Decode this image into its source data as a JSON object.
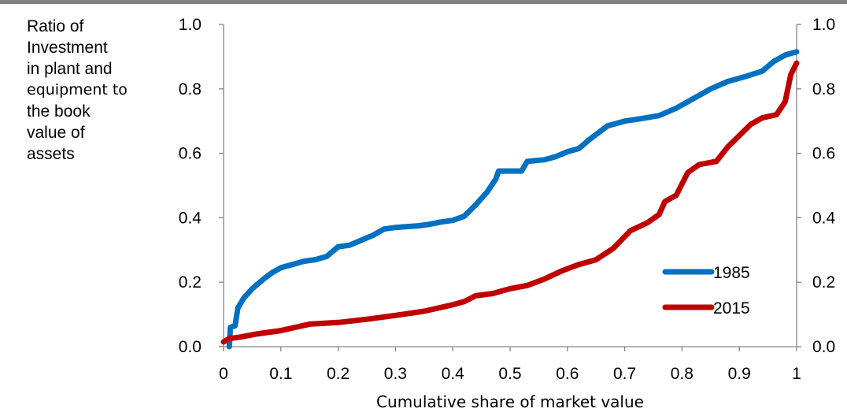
{
  "chart_data": {
    "type": "line",
    "ylabel_lines": [
      "Ratio of",
      "Investment",
      "in plant and",
      "equipment to",
      "the book",
      "value of",
      "assets"
    ],
    "xlabel": "Cumulative share of market value",
    "xlim": [
      0,
      1
    ],
    "ylim": [
      0,
      1
    ],
    "xticks": [
      0,
      0.1,
      0.2,
      0.3,
      0.4,
      0.5,
      0.6,
      0.7,
      0.8,
      0.9,
      1
    ],
    "xtick_labels": [
      "0",
      "0.1",
      "0.2",
      "0.3",
      "0.4",
      "0.5",
      "0.6",
      "0.7",
      "0.8",
      "0.9",
      "1"
    ],
    "yticks": [
      0,
      0.2,
      0.4,
      0.6,
      0.8,
      1.0
    ],
    "ytick_labels_left": [
      "0.0",
      "0.2",
      "0.4",
      "0.6",
      "0.8",
      "1.0"
    ],
    "ytick_labels_right": [
      "0.0",
      "0.2",
      "0.4",
      "0.6",
      "0.8",
      "1.0"
    ],
    "grid": false,
    "legend_position": "right-middle",
    "series": [
      {
        "name": "1985",
        "color": "#0070C0",
        "points": [
          [
            0.01,
            0.0
          ],
          [
            0.012,
            0.06
          ],
          [
            0.02,
            0.065
          ],
          [
            0.025,
            0.12
          ],
          [
            0.035,
            0.15
          ],
          [
            0.05,
            0.18
          ],
          [
            0.07,
            0.21
          ],
          [
            0.085,
            0.23
          ],
          [
            0.1,
            0.245
          ],
          [
            0.12,
            0.255
          ],
          [
            0.14,
            0.265
          ],
          [
            0.16,
            0.27
          ],
          [
            0.18,
            0.28
          ],
          [
            0.19,
            0.295
          ],
          [
            0.2,
            0.31
          ],
          [
            0.22,
            0.315
          ],
          [
            0.24,
            0.33
          ],
          [
            0.26,
            0.345
          ],
          [
            0.28,
            0.365
          ],
          [
            0.3,
            0.37
          ],
          [
            0.34,
            0.375
          ],
          [
            0.36,
            0.38
          ],
          [
            0.38,
            0.387
          ],
          [
            0.4,
            0.392
          ],
          [
            0.42,
            0.405
          ],
          [
            0.44,
            0.44
          ],
          [
            0.46,
            0.48
          ],
          [
            0.475,
            0.52
          ],
          [
            0.48,
            0.545
          ],
          [
            0.52,
            0.545
          ],
          [
            0.53,
            0.575
          ],
          [
            0.56,
            0.58
          ],
          [
            0.58,
            0.59
          ],
          [
            0.6,
            0.605
          ],
          [
            0.62,
            0.615
          ],
          [
            0.64,
            0.645
          ],
          [
            0.67,
            0.685
          ],
          [
            0.7,
            0.7
          ],
          [
            0.73,
            0.708
          ],
          [
            0.76,
            0.717
          ],
          [
            0.79,
            0.74
          ],
          [
            0.82,
            0.77
          ],
          [
            0.85,
            0.8
          ],
          [
            0.88,
            0.823
          ],
          [
            0.91,
            0.838
          ],
          [
            0.94,
            0.855
          ],
          [
            0.96,
            0.885
          ],
          [
            0.98,
            0.905
          ],
          [
            1.0,
            0.915
          ]
        ]
      },
      {
        "name": "2015",
        "color": "#C00000",
        "points": [
          [
            0.0,
            0.015
          ],
          [
            0.01,
            0.025
          ],
          [
            0.03,
            0.03
          ],
          [
            0.06,
            0.04
          ],
          [
            0.1,
            0.05
          ],
          [
            0.15,
            0.07
          ],
          [
            0.2,
            0.075
          ],
          [
            0.25,
            0.085
          ],
          [
            0.3,
            0.097
          ],
          [
            0.35,
            0.11
          ],
          [
            0.4,
            0.13
          ],
          [
            0.42,
            0.14
          ],
          [
            0.44,
            0.158
          ],
          [
            0.47,
            0.165
          ],
          [
            0.5,
            0.18
          ],
          [
            0.53,
            0.19
          ],
          [
            0.56,
            0.21
          ],
          [
            0.59,
            0.235
          ],
          [
            0.62,
            0.255
          ],
          [
            0.65,
            0.27
          ],
          [
            0.68,
            0.305
          ],
          [
            0.71,
            0.36
          ],
          [
            0.74,
            0.385
          ],
          [
            0.76,
            0.41
          ],
          [
            0.77,
            0.45
          ],
          [
            0.79,
            0.47
          ],
          [
            0.81,
            0.54
          ],
          [
            0.83,
            0.565
          ],
          [
            0.86,
            0.575
          ],
          [
            0.88,
            0.62
          ],
          [
            0.9,
            0.655
          ],
          [
            0.92,
            0.69
          ],
          [
            0.94,
            0.71
          ],
          [
            0.965,
            0.72
          ],
          [
            0.98,
            0.76
          ],
          [
            0.99,
            0.845
          ],
          [
            1.0,
            0.88
          ]
        ]
      }
    ]
  }
}
